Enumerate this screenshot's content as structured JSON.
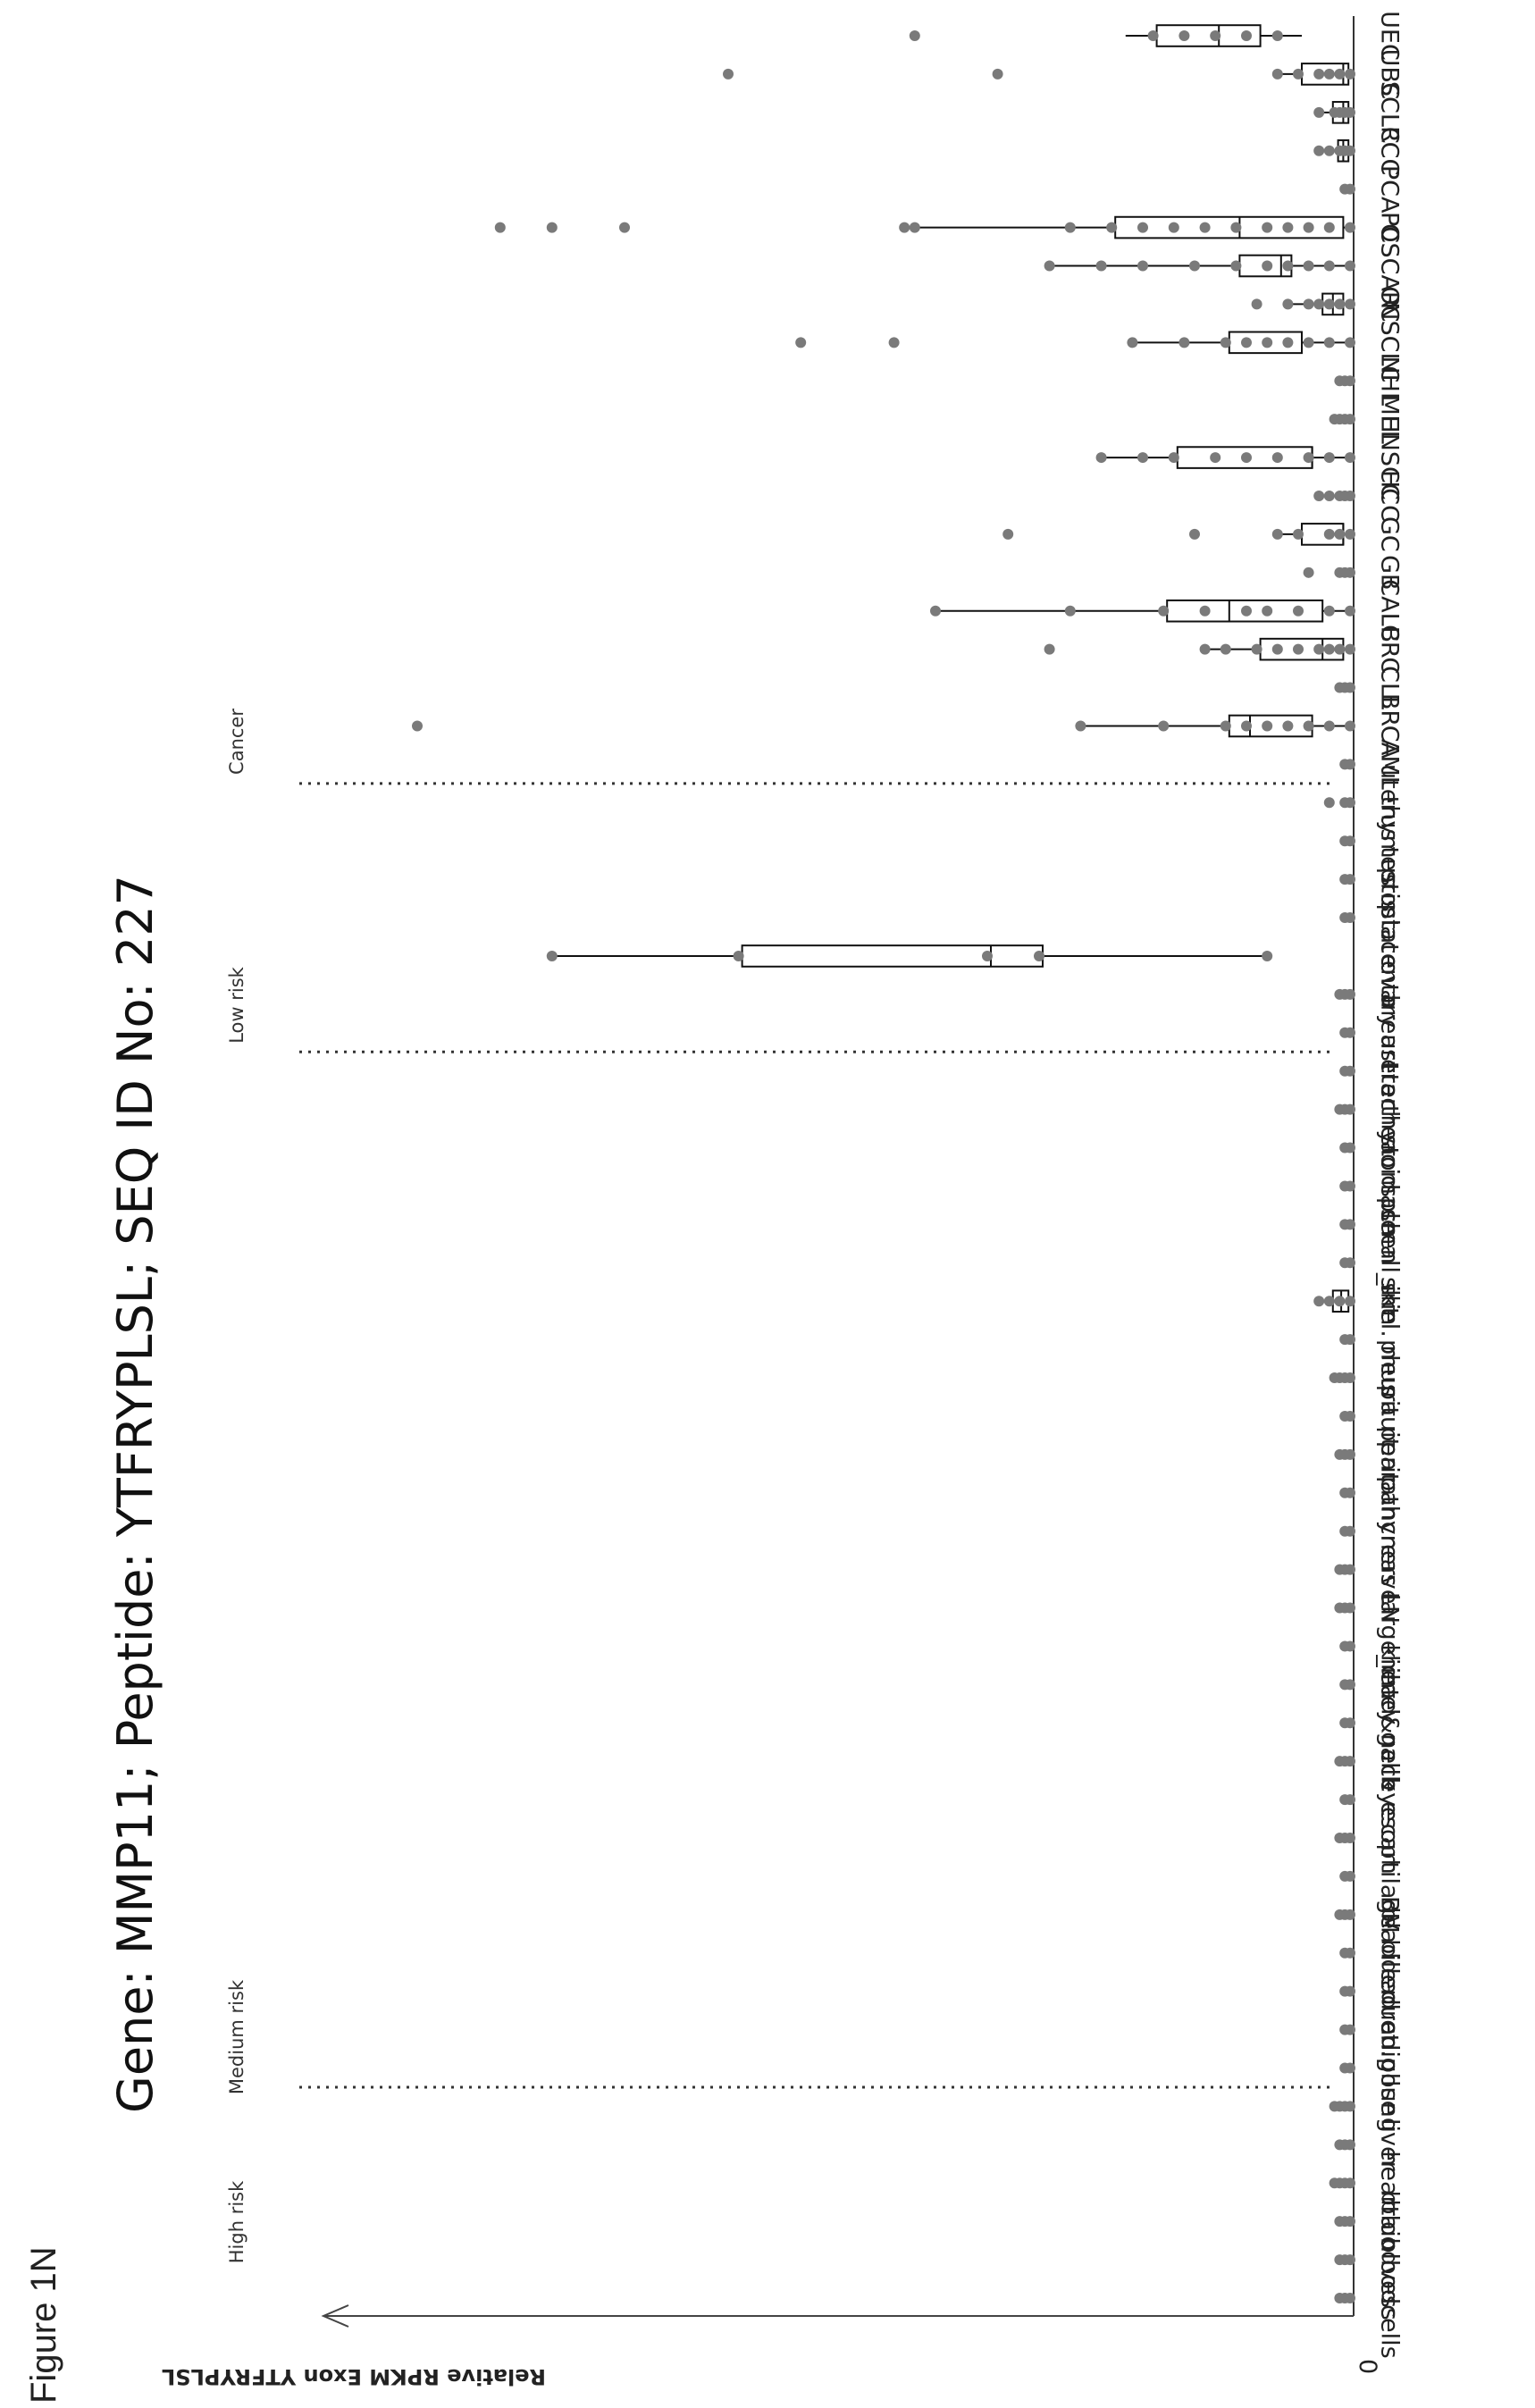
{
  "figure_label": "Figure 1N",
  "chart_data": {
    "type": "box",
    "title": "Gene: MMP11; Peptide: YTFRYPLSL; SEQ ID No: 227",
    "ylabel": "Relative RPKM Exon YTFRYPLSL",
    "zero_label": "0",
    "groups": [
      {
        "label": "High risk",
        "members": [
          "bloodcells",
          "bloodvess",
          "brain",
          "heart",
          "liver",
          "lung"
        ]
      },
      {
        "label": "Medium risk",
        "members": [
          "adipose",
          "adren.gl",
          "bile duct",
          "bladder",
          "BM",
          "cartilage",
          "esoph",
          "eye",
          "gallb",
          "head&neck",
          "kidney",
          "large_int",
          "LN",
          "nerve",
          "pancreas",
          "parathyr",
          "perit",
          "pituit",
          "pleura",
          "skel. mus",
          "skin",
          "small_int",
          "spleen",
          "stomach",
          "thyroid",
          "trachea",
          "ureter"
        ]
      },
      {
        "label": "Low risk",
        "members": [
          "breast",
          "ovary",
          "placenta",
          "prostate",
          "testis",
          "thymus",
          "uterus"
        ]
      },
      {
        "label": "Cancer",
        "members": [
          "AML",
          "BRCA",
          "CLL",
          "CRC",
          "CALB",
          "GB",
          "GC",
          "HCC",
          "HNSCC",
          "MEL",
          "NHL",
          "NSCLC",
          "OC",
          "OSCAR",
          "PC",
          "PCA",
          "RCC",
          "SCLC",
          "UBC",
          "UEC"
        ]
      }
    ],
    "categories": [
      "bloodcells",
      "bloodvess",
      "brain",
      "heart",
      "liver",
      "lung",
      "adipose",
      "adren.gl",
      "bile duct",
      "bladder",
      "BM",
      "cartilage",
      "esoph",
      "eye",
      "gallb",
      "head&neck",
      "kidney",
      "large_int",
      "LN",
      "nerve",
      "pancreas",
      "parathyr",
      "perit",
      "pituit",
      "pleura",
      "skel. mus",
      "skin",
      "small_int",
      "spleen",
      "stomach",
      "thyroid",
      "trachea",
      "ureter",
      "breast",
      "ovary",
      "placenta",
      "prostate",
      "testis",
      "thymus",
      "uterus",
      "AML",
      "BRCA",
      "CLL",
      "CRC",
      "CALB",
      "GB",
      "GC",
      "HCC",
      "HNSCC",
      "MEL",
      "NHL",
      "NSCLC",
      "OC",
      "OSCAR",
      "PC",
      "PCA",
      "RCC",
      "SCLC",
      "UBC",
      "UEC"
    ],
    "axis_range": [
      0,
      1
    ],
    "boxes": [
      {
        "category": "skin",
        "whisker_low": 0.0,
        "q1": 0.005,
        "median": 0.012,
        "q3": 0.02,
        "whisker_high": 0.03
      },
      {
        "category": "placenta",
        "whisker_low": 0.08,
        "q1": 0.3,
        "median": 0.35,
        "q3": 0.59,
        "whisker_high": 0.77
      },
      {
        "category": "BRCA",
        "whisker_low": 0.0,
        "q1": 0.04,
        "median": 0.1,
        "q3": 0.12,
        "whisker_high": 0.26
      },
      {
        "category": "CRC",
        "whisker_low": 0.0,
        "q1": 0.01,
        "median": 0.03,
        "q3": 0.09,
        "whisker_high": 0.14
      },
      {
        "category": "CALB",
        "whisker_low": 0.0,
        "q1": 0.03,
        "median": 0.12,
        "q3": 0.18,
        "whisker_high": 0.4
      },
      {
        "category": "GC",
        "whisker_low": 0.0,
        "q1": 0.01,
        "median": 0.01,
        "q3": 0.05,
        "whisker_high": 0.07
      },
      {
        "category": "HNSCC",
        "whisker_low": 0.0,
        "q1": 0.04,
        "median": 0.04,
        "q3": 0.17,
        "whisker_high": 0.24
      },
      {
        "category": "NSCLC",
        "whisker_low": 0.0,
        "q1": 0.05,
        "median": 0.05,
        "q3": 0.12,
        "whisker_high": 0.21
      },
      {
        "category": "OC",
        "whisker_low": 0.0,
        "q1": 0.01,
        "median": 0.02,
        "q3": 0.03,
        "whisker_high": 0.06
      },
      {
        "category": "OSCAR",
        "whisker_low": 0.0,
        "q1": 0.06,
        "median": 0.07,
        "q3": 0.11,
        "whisker_high": 0.29
      },
      {
        "category": "PC",
        "whisker_low": 0.0,
        "q1": 0.01,
        "median": 0.11,
        "q3": 0.23,
        "whisker_high": 0.42
      },
      {
        "category": "RCC",
        "whisker_low": 0.0,
        "q1": 0.005,
        "median": 0.01,
        "q3": 0.015,
        "whisker_high": 0.02
      },
      {
        "category": "SCLC",
        "whisker_low": 0.0,
        "q1": 0.005,
        "median": 0.01,
        "q3": 0.02,
        "whisker_high": 0.03
      },
      {
        "category": "UBC",
        "whisker_low": 0.0,
        "q1": 0.005,
        "median": 0.01,
        "q3": 0.05,
        "whisker_high": 0.07
      },
      {
        "category": "UEC",
        "whisker_low": 0.05,
        "q1": 0.09,
        "median": 0.13,
        "q3": 0.19,
        "whisker_high": 0.22
      }
    ],
    "points": {
      "bloodcells": [
        0.0,
        0.005,
        0.01
      ],
      "bloodvess": [
        0.0,
        0.005,
        0.01
      ],
      "brain": [
        0.0,
        0.005,
        0.01
      ],
      "heart": [
        0.0,
        0.005,
        0.01,
        0.015
      ],
      "liver": [
        0.0,
        0.005,
        0.01
      ],
      "lung": [
        0.0,
        0.005,
        0.01,
        0.015
      ],
      "adipose": [
        0.0,
        0.005
      ],
      "adren.gl": [
        0.0,
        0.005
      ],
      "bile duct": [
        0.0,
        0.005
      ],
      "bladder": [
        0.0,
        0.005
      ],
      "BM": [
        0.0,
        0.005,
        0.01
      ],
      "cartilage": [
        0.0,
        0.005
      ],
      "esoph": [
        0.0,
        0.005,
        0.01
      ],
      "eye": [
        0.0,
        0.005
      ],
      "gallb": [
        0.0,
        0.005,
        0.01
      ],
      "head&neck": [
        0.0,
        0.005
      ],
      "kidney": [
        0.0,
        0.005
      ],
      "large_int": [
        0.0,
        0.005
      ],
      "LN": [
        0.0,
        0.005,
        0.01
      ],
      "nerve": [
        0.0,
        0.005,
        0.01
      ],
      "pancreas": [
        0.0,
        0.005
      ],
      "parathyr": [
        0.0,
        0.005
      ],
      "perit": [
        0.0,
        0.005,
        0.01
      ],
      "pituit": [
        0.0,
        0.005
      ],
      "pleura": [
        0.0,
        0.005,
        0.01,
        0.015
      ],
      "skel. mus": [
        0.0,
        0.005
      ],
      "skin": [
        0.0,
        0.01,
        0.02,
        0.03
      ],
      "small_int": [
        0.0,
        0.005
      ],
      "spleen": [
        0.0,
        0.005
      ],
      "stomach": [
        0.0,
        0.005
      ],
      "thyroid": [
        0.0,
        0.005
      ],
      "trachea": [
        0.0,
        0.005,
        0.01
      ],
      "ureter": [
        0.0,
        0.005
      ],
      "breast": [
        0.0,
        0.005
      ],
      "ovary": [
        0.0,
        0.005,
        0.01
      ],
      "placenta": [
        0.08,
        0.3,
        0.35,
        0.59,
        0.77
      ],
      "prostate": [
        0.0,
        0.005
      ],
      "testis": [
        0.0,
        0.005
      ],
      "thymus": [
        0.0,
        0.005
      ],
      "uterus": [
        0.0,
        0.005,
        0.02
      ],
      "AML": [
        0.0,
        0.005
      ],
      "BRCA": [
        0.0,
        0.02,
        0.04,
        0.06,
        0.08,
        0.1,
        0.12,
        0.18,
        0.26,
        0.9
      ],
      "CLL": [
        0.0,
        0.005,
        0.01
      ],
      "CRC": [
        0.0,
        0.01,
        0.02,
        0.03,
        0.05,
        0.07,
        0.09,
        0.12,
        0.14,
        0.29
      ],
      "CALB": [
        0.0,
        0.02,
        0.05,
        0.08,
        0.1,
        0.14,
        0.18,
        0.27,
        0.4
      ],
      "GB": [
        0.0,
        0.005,
        0.01,
        0.04
      ],
      "GC": [
        0.0,
        0.01,
        0.02,
        0.05,
        0.07,
        0.15,
        0.33
      ],
      "HCC": [
        0.0,
        0.005,
        0.01,
        0.02,
        0.03
      ],
      "HNSCC": [
        0.0,
        0.02,
        0.04,
        0.07,
        0.1,
        0.13,
        0.17,
        0.2,
        0.24
      ],
      "MEL": [
        0.0,
        0.005,
        0.01,
        0.015
      ],
      "NHL": [
        0.0,
        0.005,
        0.01
      ],
      "NSCLC": [
        0.0,
        0.02,
        0.04,
        0.06,
        0.08,
        0.1,
        0.12,
        0.16,
        0.21,
        0.44,
        0.53
      ],
      "OC": [
        0.0,
        0.01,
        0.02,
        0.03,
        0.04,
        0.06,
        0.09
      ],
      "OSCAR": [
        0.0,
        0.02,
        0.04,
        0.06,
        0.08,
        0.11,
        0.15,
        0.2,
        0.24,
        0.29
      ],
      "PC": [
        0.0,
        0.02,
        0.04,
        0.06,
        0.08,
        0.11,
        0.14,
        0.17,
        0.2,
        0.23,
        0.27,
        0.42,
        0.43,
        0.7,
        0.77,
        0.82
      ],
      "PCA": [
        0.0,
        0.005
      ],
      "RCC": [
        0.0,
        0.005,
        0.01,
        0.02,
        0.03
      ],
      "SCLC": [
        0.0,
        0.005,
        0.01,
        0.015,
        0.03
      ],
      "UBC": [
        0.0,
        0.01,
        0.02,
        0.03,
        0.05,
        0.07,
        0.34,
        0.6
      ],
      "UEC": [
        0.07,
        0.1,
        0.13,
        0.16,
        0.19,
        0.42
      ]
    },
    "dividers_after": [
      "lung",
      "ureter",
      "uterus"
    ],
    "legend": "none",
    "grid": false
  }
}
